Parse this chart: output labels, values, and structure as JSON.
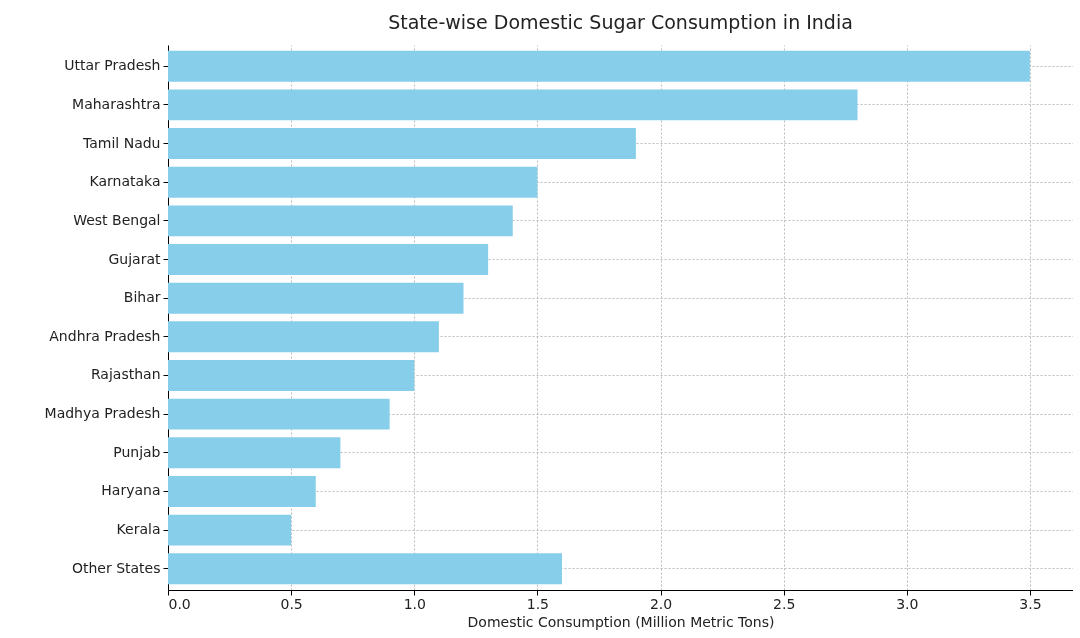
{
  "chart_data": {
    "type": "bar",
    "orientation": "horizontal",
    "title": "State-wise Domestic Sugar Consumption in India",
    "xlabel": "Domestic Consumption (Million Metric Tons)",
    "categories": [
      "Uttar Pradesh",
      "Maharashtra",
      "Tamil Nadu",
      "Karnataka",
      "West Bengal",
      "Gujarat",
      "Bihar",
      "Andhra Pradesh",
      "Rajasthan",
      "Madhya Pradesh",
      "Punjab",
      "Haryana",
      "Kerala",
      "Other States"
    ],
    "values": [
      3.5,
      2.8,
      1.9,
      1.5,
      1.4,
      1.3,
      1.2,
      1.1,
      1.0,
      0.9,
      0.7,
      0.6,
      0.5,
      1.6
    ],
    "color": "#87ceeb",
    "xlim": [
      0,
      3.675
    ],
    "xticks": [
      {
        "value": 0,
        "label": "0.0"
      },
      0.5,
      {
        "value": 1,
        "label": "1.0"
      },
      1.5,
      {
        "value": 2,
        "label": "2.0"
      },
      2.5,
      {
        "value": 3,
        "label": "3.0"
      },
      3.5
    ],
    "grid": true
  }
}
